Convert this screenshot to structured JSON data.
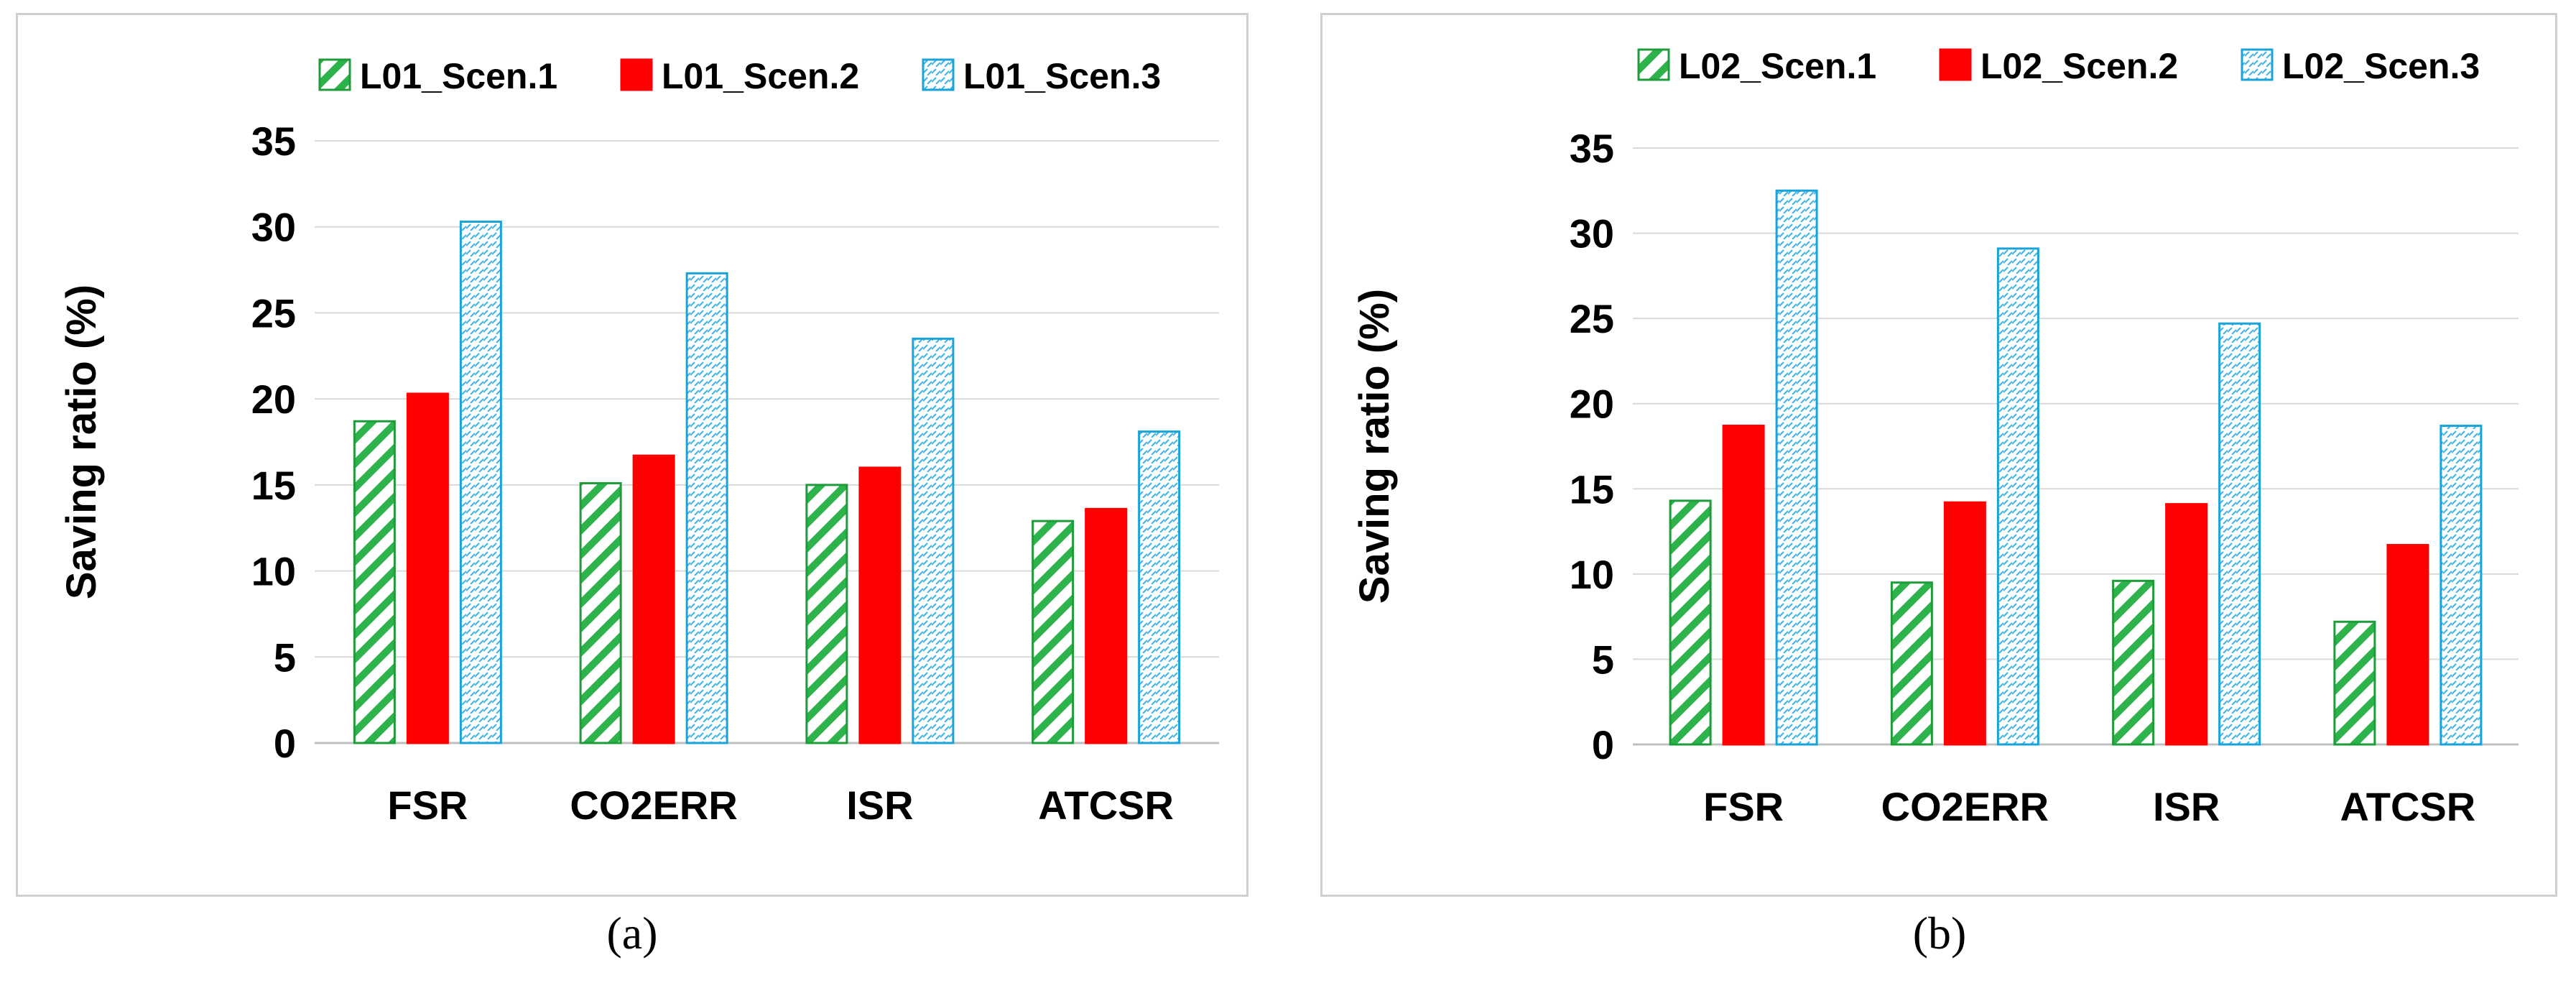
{
  "colors": {
    "scen1_stroke": "#1e9c3a",
    "scen1_fill": "#2eb34c",
    "scen2": "#ff0000",
    "scen3_stroke": "#1aa3d9",
    "scen3_fill": "#46b4e6",
    "grid": "#d9d9d9",
    "axis": "#bfbfbf"
  },
  "chart_data": [
    {
      "type": "bar",
      "panel_label": "(a)",
      "title": "",
      "xlabel": "",
      "ylabel": "Saving ratio (%)",
      "ylim": [
        0,
        35
      ],
      "yticks": [
        0,
        5,
        10,
        15,
        20,
        25,
        30,
        35
      ],
      "grid": true,
      "legend": "top-right",
      "categories": [
        "FSR",
        "CO2ERR",
        "ISR",
        "ATCSR"
      ],
      "series": [
        {
          "name": "L01_Scen.1",
          "pattern": "diagonal",
          "values": [
            18.7,
            15.1,
            15.0,
            12.9
          ]
        },
        {
          "name": "L01_Scen.2",
          "pattern": "solid",
          "values": [
            20.3,
            16.7,
            16.0,
            13.6
          ]
        },
        {
          "name": "L01_Scen.3",
          "pattern": "dotted",
          "values": [
            30.3,
            27.3,
            23.5,
            18.1
          ]
        }
      ]
    },
    {
      "type": "bar",
      "panel_label": "(b)",
      "title": "",
      "xlabel": "",
      "ylabel": "Saving ratio (%)",
      "ylim": [
        0,
        35
      ],
      "yticks": [
        0,
        5,
        10,
        15,
        20,
        25,
        30,
        35
      ],
      "grid": true,
      "legend": "top-right",
      "categories": [
        "FSR",
        "CO2ERR",
        "ISR",
        "ATCSR"
      ],
      "series": [
        {
          "name": "L02_Scen.1",
          "pattern": "diagonal",
          "values": [
            14.3,
            9.5,
            9.6,
            7.2
          ]
        },
        {
          "name": "L02_Scen.2",
          "pattern": "solid",
          "values": [
            18.7,
            14.2,
            14.1,
            11.7
          ]
        },
        {
          "name": "L02_Scen.3",
          "pattern": "dotted",
          "values": [
            32.5,
            29.1,
            24.7,
            18.7
          ]
        }
      ]
    }
  ]
}
